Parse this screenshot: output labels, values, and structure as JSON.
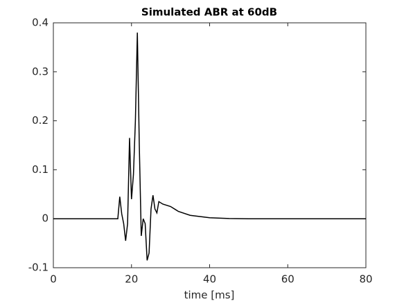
{
  "chart_data": {
    "type": "line",
    "title": "Simulated ABR at 60dB",
    "x_label": "time [ms]",
    "series": [
      {
        "color": "#000000",
        "x": [
          0,
          16.5,
          17,
          17.5,
          18,
          18.5,
          19,
          19.5,
          20,
          20.5,
          21,
          21.5,
          22,
          22.5,
          23,
          23.5,
          24,
          24.5,
          25,
          25.5,
          26,
          26.5,
          27,
          28,
          30,
          32,
          35,
          40,
          45,
          50,
          80
        ],
        "values": [
          0,
          0,
          0.045,
          0.01,
          -0.01,
          -0.045,
          -0.01,
          0.165,
          0.04,
          0.09,
          0.2,
          0.38,
          0.15,
          -0.035,
          0,
          -0.01,
          -0.085,
          -0.07,
          0.02,
          0.048,
          0.02,
          0.012,
          0.035,
          0.03,
          0.025,
          0.015,
          0.007,
          0.002,
          0.0005,
          0,
          0
        ]
      }
    ],
    "xlim": [
      0,
      80
    ],
    "xticks": [
      0,
      20,
      40,
      60,
      80
    ],
    "ylim": [
      -0.1,
      0.4
    ],
    "yticks": [
      -0.1,
      0,
      0.1,
      0.2,
      0.3,
      0.4
    ]
  }
}
